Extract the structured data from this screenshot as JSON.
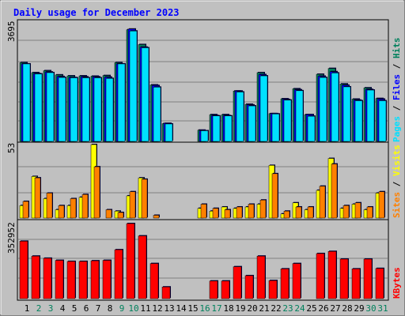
{
  "chart_data": [
    {
      "type": "bar",
      "title": "Daily usage for December 2023",
      "categories": [
        "1",
        "2",
        "3",
        "4",
        "5",
        "6",
        "7",
        "8",
        "9",
        "10",
        "11",
        "12",
        "13",
        "14",
        "15",
        "16",
        "17",
        "18",
        "19",
        "20",
        "21",
        "22",
        "23",
        "24",
        "25",
        "26",
        "27",
        "28",
        "29",
        "30",
        "31"
      ],
      "weekend_days": [
        "2",
        "3",
        "9",
        "10",
        "16",
        "17",
        "23",
        "24",
        "30",
        "31"
      ],
      "ylim": [
        0,
        3695
      ],
      "y_tick_label": "3695",
      "series": [
        {
          "name": "Hits",
          "color": "#00805c",
          "values": [
            2440,
            2130,
            2190,
            2060,
            2030,
            2030,
            2020,
            2040,
            2440,
            3460,
            3000,
            1750,
            550,
            0,
            0,
            350,
            830,
            830,
            1560,
            1150,
            2130,
            860,
            1320,
            1630,
            830,
            2080,
            2260,
            1780,
            1310,
            1660,
            1330
          ]
        },
        {
          "name": "Files",
          "color": "#0000ff",
          "values": [
            2400,
            2100,
            2150,
            2010,
            1980,
            2000,
            2000,
            1990,
            2400,
            3480,
            2920,
            1730,
            560,
            0,
            0,
            330,
            800,
            800,
            1560,
            1130,
            2070,
            860,
            1300,
            1600,
            830,
            2020,
            2160,
            1740,
            1280,
            1610,
            1310
          ]
        },
        {
          "name": "Pages",
          "color": "#00e0ff",
          "values": [
            2400,
            2090,
            2130,
            1980,
            1970,
            1970,
            1970,
            1950,
            2400,
            3420,
            2900,
            1680,
            540,
            0,
            0,
            330,
            790,
            790,
            1530,
            1100,
            2030,
            850,
            1280,
            1570,
            780,
            1980,
            2120,
            1690,
            1260,
            1590,
            1260
          ]
        }
      ],
      "legend": [
        "Pages",
        "Files",
        "Hits"
      ],
      "legend_placement": "right"
    },
    {
      "type": "bar",
      "categories": [
        "1",
        "2",
        "3",
        "4",
        "5",
        "6",
        "7",
        "8",
        "9",
        "10",
        "11",
        "12",
        "13",
        "14",
        "15",
        "16",
        "17",
        "18",
        "19",
        "20",
        "21",
        "22",
        "23",
        "24",
        "25",
        "26",
        "27",
        "28",
        "29",
        "30",
        "31"
      ],
      "ylim": [
        0,
        53
      ],
      "y_tick_label": "53",
      "series": [
        {
          "name": "Visits",
          "color": "#ffff00",
          "values": [
            9,
            30,
            14,
            6,
            9,
            15,
            53,
            0,
            5,
            16,
            29,
            0,
            0,
            0,
            0,
            7,
            5,
            8,
            7,
            8,
            10,
            38,
            3,
            11,
            6,
            20,
            43,
            7,
            10,
            6,
            18
          ]
        },
        {
          "name": "Sites",
          "color": "#ff8000",
          "values": [
            12,
            29,
            18,
            9,
            14,
            17,
            37,
            6,
            4,
            19,
            28,
            2,
            0,
            0,
            0,
            10,
            7,
            6,
            8,
            10,
            13,
            32,
            5,
            8,
            8,
            23,
            39,
            9,
            11,
            8,
            19
          ]
        }
      ],
      "legend": [
        "Sites",
        "Visits"
      ],
      "legend_placement": "right"
    },
    {
      "type": "bar",
      "categories": [
        "1",
        "2",
        "3",
        "4",
        "5",
        "6",
        "7",
        "8",
        "9",
        "10",
        "11",
        "12",
        "13",
        "14",
        "15",
        "16",
        "17",
        "18",
        "19",
        "20",
        "21",
        "22",
        "23",
        "24",
        "25",
        "26",
        "27",
        "28",
        "29",
        "30",
        "31"
      ],
      "ylim": [
        0,
        352952
      ],
      "y_tick_label": "352952",
      "series": [
        {
          "name": "KBytes",
          "color": "#ff0000",
          "values": [
            270000,
            200000,
            190000,
            180000,
            175000,
            175000,
            178000,
            180000,
            230000,
            352952,
            295000,
            165000,
            55000,
            0,
            0,
            0,
            83000,
            83000,
            150000,
            108000,
            200000,
            85000,
            140000,
            165000,
            0,
            212000,
            222000,
            186000,
            140000,
            186000,
            142000
          ]
        }
      ],
      "legend": [
        "KBytes"
      ],
      "legend_placement": "right"
    }
  ]
}
